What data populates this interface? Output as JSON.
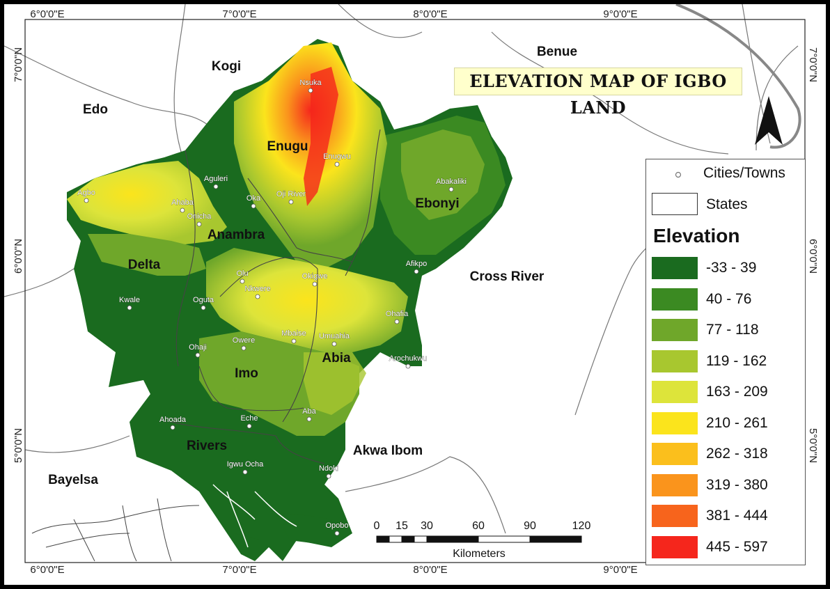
{
  "title": "ELEVATION MAP OF IGBO LAND",
  "coordinates": {
    "top": [
      "6°0'0\"E",
      "7°0'0\"E",
      "8°0'0\"E",
      "9°0'0\"E"
    ],
    "bottom": [
      "6°0'0\"E",
      "7°0'0\"E",
      "8°0'0\"E",
      "9°0'0\"E"
    ],
    "left": [
      "7°0'0\"N",
      "6°0'0\"N",
      "5°0'0\"N"
    ],
    "right": [
      "7°0'0\"N",
      "6°0'0\"N",
      "5°0'0\"N"
    ]
  },
  "states_outside": [
    "Benue",
    "Kogi",
    "Edo",
    "Cross River",
    "Akwa Ibom",
    "Bayelsa"
  ],
  "states_inside": [
    "Enugu",
    "Ebonyi",
    "Anambra",
    "Delta",
    "Imo",
    "Abia",
    "Rivers"
  ],
  "cities": [
    "Nsuka",
    "Enugwu",
    "Aguleri",
    "Oka",
    "Oji River",
    "Abakaliki",
    "Agbo",
    "Ahaba",
    "Onicha",
    "Olu",
    "Okigwe",
    "Afikpo",
    "Nkwere",
    "Kwale",
    "Oguta",
    "Ohafia",
    "Mbaise",
    "Umuahia",
    "Ohaji",
    "Owere",
    "Arochukwu",
    "Ahoada",
    "Eche",
    "Aba",
    "Igwu Ocha",
    "Ndoki",
    "Opobo"
  ],
  "legend": {
    "cities_label": "Cities/Towns",
    "states_label": "States",
    "elevation_heading": "Elevation",
    "classes": [
      {
        "label": "-33 - 39",
        "color": "#1a6b1f"
      },
      {
        "label": "40 - 76",
        "color": "#3b8a22"
      },
      {
        "label": "77 - 118",
        "color": "#6fa72a"
      },
      {
        "label": "119 - 162",
        "color": "#a8c72f"
      },
      {
        "label": "163 - 209",
        "color": "#dde43a"
      },
      {
        "label": "210 - 261",
        "color": "#fbe41c"
      },
      {
        "label": "262 - 318",
        "color": "#fbbf1c"
      },
      {
        "label": "319 - 380",
        "color": "#fa941c"
      },
      {
        "label": "381 - 444",
        "color": "#f7641c"
      },
      {
        "label": "445 - 597",
        "color": "#f5261c"
      }
    ]
  },
  "scale": {
    "ticks": [
      "0",
      "15",
      "30",
      "60",
      "90",
      "120"
    ],
    "unit": "Kilometers"
  },
  "north_arrow": "north-arrow-icon"
}
